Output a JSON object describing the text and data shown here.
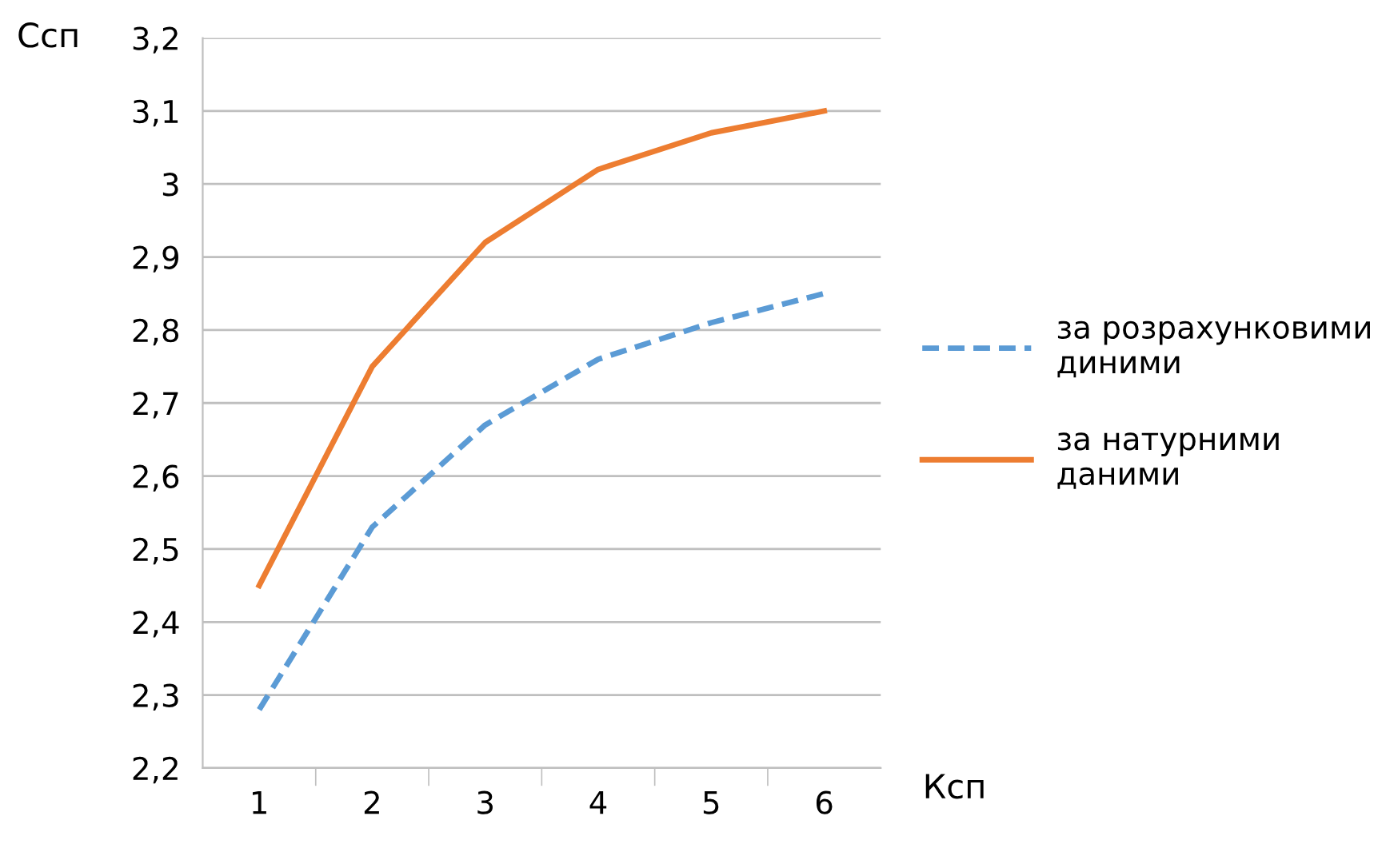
{
  "chart_data": {
    "type": "line",
    "xlabel": "Ксп",
    "ylabel": "Сcп",
    "categories": [
      "1",
      "2",
      "3",
      "4",
      "5",
      "6"
    ],
    "series": [
      {
        "name": "за розрахунковими диними",
        "color": "#5b9bd5",
        "line_style": "dashed",
        "values": [
          2.28,
          2.53,
          2.67,
          2.76,
          2.81,
          2.85
        ]
      },
      {
        "name": "за натурними даними",
        "color": "#ed7d31",
        "line_style": "solid",
        "values": [
          2.45,
          2.75,
          2.92,
          3.02,
          3.07,
          3.1
        ]
      }
    ],
    "ylim": [
      2.2,
      3.2
    ],
    "yticks": [
      {
        "value": 2.2,
        "label": "2,2"
      },
      {
        "value": 2.3,
        "label": "2,3"
      },
      {
        "value": 2.4,
        "label": "2,4"
      },
      {
        "value": 2.5,
        "label": "2,5"
      },
      {
        "value": 2.6,
        "label": "2,6"
      },
      {
        "value": 2.7,
        "label": "2,7"
      },
      {
        "value": 2.8,
        "label": "2,8"
      },
      {
        "value": 2.9,
        "label": "2,9"
      },
      3,
      {
        "value": 3.1,
        "label": "3,1"
      },
      {
        "value": 3.2,
        "label": "3,2"
      }
    ],
    "grid": "y",
    "legend": "right",
    "marker": "none"
  }
}
